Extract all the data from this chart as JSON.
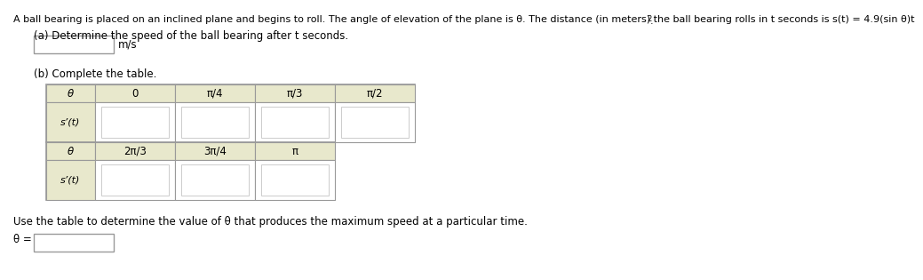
{
  "title_main": "A ball bearing is placed on an inclined plane and begins to roll. The angle of elevation of the plane is θ. The distance (in meters) the ball b",
  "title_end": "earing rolls in t seconds is s(t) = 4.9(sin θ)t",
  "part_a_label": "(a) Determine the speed of the ball bearing after t seconds.",
  "part_b_label": "(b) Complete the table.",
  "table1_headers": [
    "θ",
    "0",
    "π/4",
    "π/3",
    "π/2"
  ],
  "table1_row_label": "s’(t)",
  "table2_headers": [
    "θ",
    "2π/3",
    "3π/4",
    "π"
  ],
  "table2_row_label": "s’(t)",
  "footer_text": "Use the table to determine the value of θ that produces the maximum speed at a particular time.",
  "theta_eq": "θ =",
  "bg_color": "#ffffff",
  "header_bg": "#e8e8cc",
  "cell_bg": "#ffffff",
  "border_color": "#999999",
  "inner_box_color": "#cccccc",
  "text_color": "#000000",
  "font_size": 8.5
}
